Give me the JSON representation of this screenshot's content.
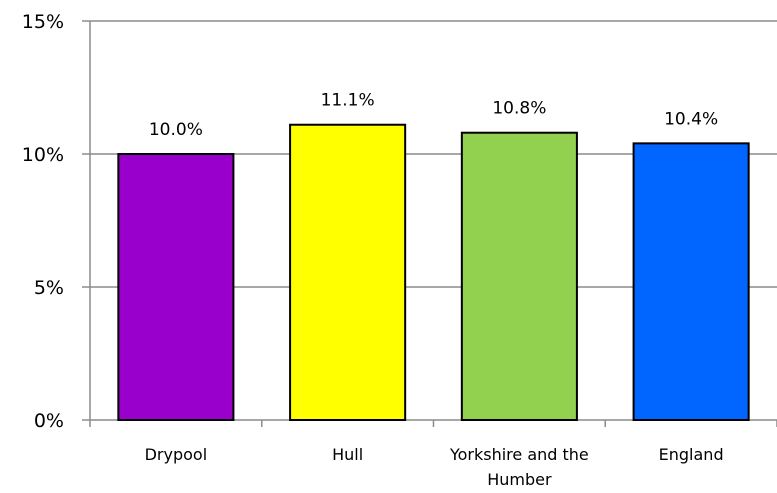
{
  "chart_data": {
    "type": "bar",
    "categories": [
      [
        "Drypool"
      ],
      [
        "Hull"
      ],
      [
        "Yorkshire and the",
        "Humber"
      ],
      [
        "England"
      ]
    ],
    "values": [
      10.0,
      11.1,
      10.8,
      10.4
    ],
    "data_labels": [
      "10.0%",
      "11.1%",
      "10.8%",
      "10.4%"
    ],
    "colors": [
      "#9900cc",
      "#ffff00",
      "#92d050",
      "#0066ff"
    ],
    "ylim": [
      0,
      15
    ],
    "yticks": [
      0,
      5,
      10,
      15
    ],
    "ytick_labels": [
      "0%",
      "5%",
      "10%",
      "15%"
    ],
    "grid": true,
    "title": "",
    "xlabel": "",
    "ylabel": ""
  }
}
